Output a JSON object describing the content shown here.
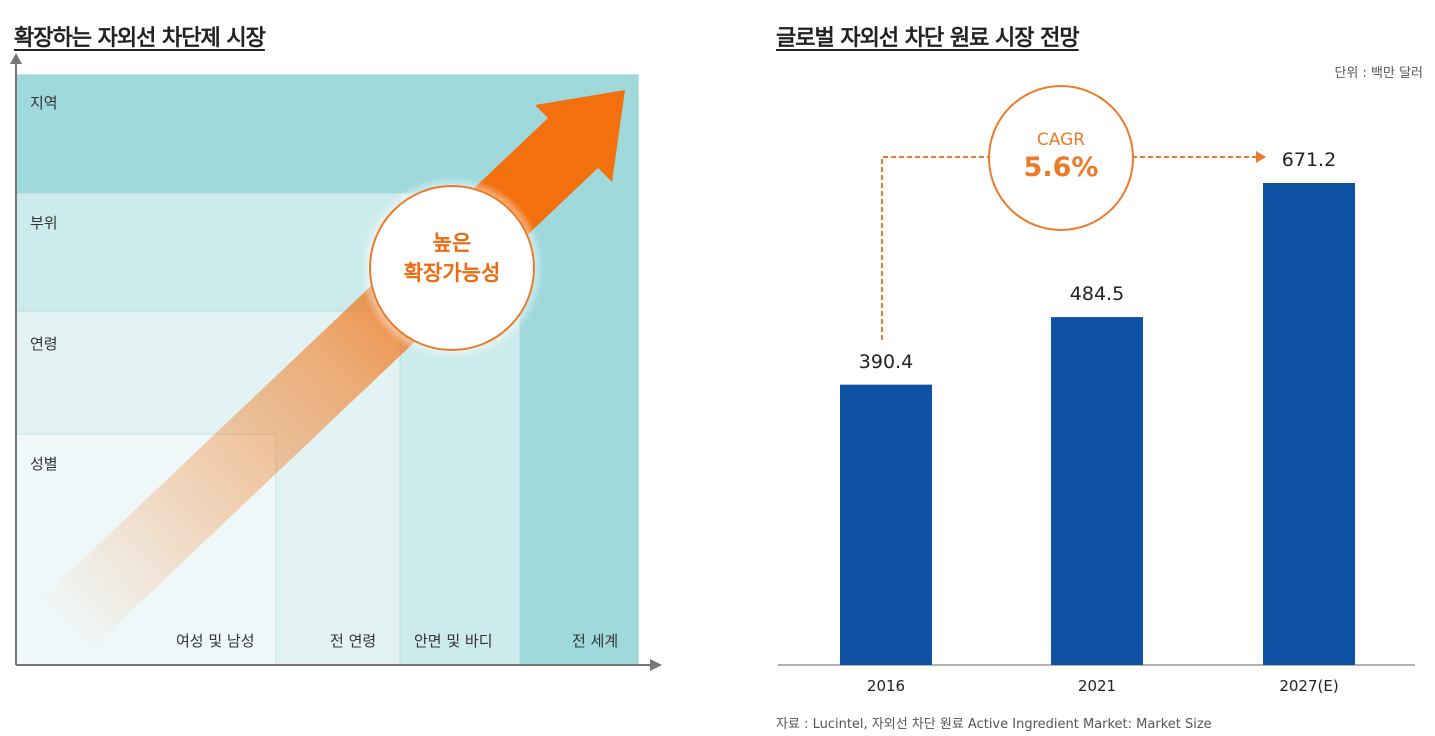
{
  "left": {
    "title": "확장하는 자외선 차단제 시장",
    "rows": [
      "지역",
      "부위",
      "연령",
      "성별"
    ],
    "columns": [
      "여성 및 남성",
      "전 연령",
      "안면 및 바디",
      "전 세계"
    ],
    "badge_line1": "높은",
    "badge_line2": "확장가능성",
    "colors": {
      "level1": "#9fd9dc",
      "level2": "#cdebec",
      "level3": "#e3f3f3",
      "level4": "#eff8f8",
      "arrow": "#f3700f"
    }
  },
  "right": {
    "title": "글로벌 자외선 차단 원료 시장 전망",
    "unit": "단위 : 백만 달러",
    "cagr_label": "CAGR",
    "cagr_value": "5.6%",
    "source": "자료  : Lucintel, 자외선 차단 원료 Active Ingredient Market: Market Size"
  },
  "chart_data": {
    "type": "bar",
    "categories": [
      "2016",
      "2021",
      "2027(E)"
    ],
    "values": [
      390.4,
      484.5,
      671.2
    ],
    "value_labels": [
      "390.4",
      "484.5",
      "671.2"
    ],
    "ylim": [
      0,
      671.2
    ],
    "bar_color": "#0f52a3",
    "accent_color": "#ec7a2b",
    "grid": false
  }
}
